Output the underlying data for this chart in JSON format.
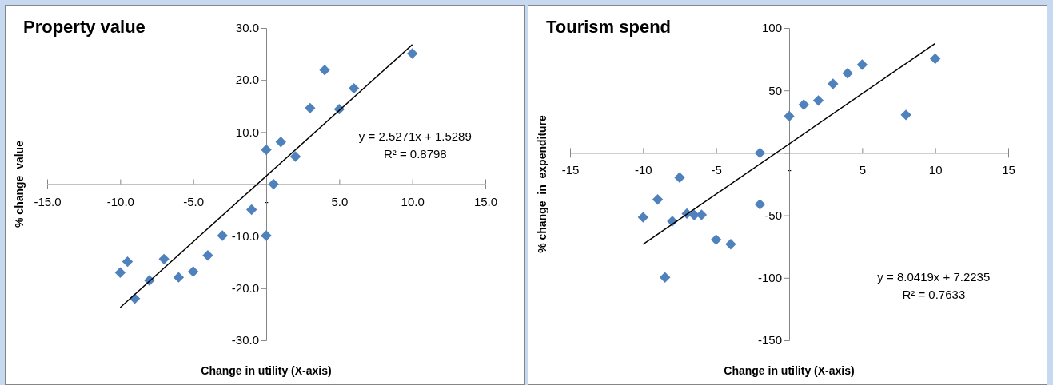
{
  "chart_data": [
    {
      "type": "scatter",
      "title": "Property value",
      "xlabel": "Change in utility (X-axis)",
      "ylabel": "% change  value",
      "grid": false,
      "xlim": [
        -15,
        15
      ],
      "xticks": [
        {
          "value": -15,
          "label": "-15.0"
        },
        {
          "value": -10,
          "label": "-10.0"
        },
        {
          "value": -5,
          "label": "-5.0"
        },
        {
          "value": 0,
          "label": "-"
        },
        {
          "value": 5,
          "label": "5.0"
        },
        {
          "value": 10,
          "label": "10.0"
        },
        {
          "value": 15,
          "label": "15.0"
        }
      ],
      "ylim": [
        -30,
        30
      ],
      "yticks": [
        {
          "value": -30,
          "label": "-30.0"
        },
        {
          "value": -20,
          "label": "-20.0"
        },
        {
          "value": -10,
          "label": "-10.0"
        },
        {
          "value": 0,
          "label": "-"
        },
        {
          "value": 10,
          "label": "10.0"
        },
        {
          "value": 20,
          "label": "20.0"
        },
        {
          "value": 30,
          "label": "30.0"
        }
      ],
      "annotations": [
        "y = 2.5271x + 1.5289",
        "R² = 0.8798"
      ],
      "series": [
        {
          "color": "#4f81bd",
          "marker": "diamond",
          "x": [
            -10,
            -9.5,
            -9,
            -8,
            -7,
            -6,
            -5,
            -4,
            -3,
            -1,
            0,
            0,
            0.5,
            1,
            2,
            3,
            4,
            5,
            6,
            10
          ],
          "values": [
            -17.0,
            -14.9,
            -22.0,
            -18.5,
            -14.4,
            -17.9,
            -16.8,
            -13.7,
            -9.9,
            -4.9,
            -9.9,
            6.6,
            0,
            8.1,
            5.3,
            14.6,
            21.9,
            14.4,
            18.4,
            25.1
          ]
        },
        {
          "type": "line",
          "color": "#000000",
          "marker": "none",
          "x": [
            -10,
            10
          ],
          "values": [
            -23.7,
            26.8
          ]
        }
      ]
    },
    {
      "type": "scatter",
      "title": "Tourism spend",
      "xlabel": "Change in utility (X-axis)",
      "ylabel": "% change  in  expenditure",
      "grid": false,
      "xlim": [
        -15,
        15
      ],
      "xticks": [
        -15,
        -10,
        -5,
        {
          "value": 0,
          "label": "-"
        },
        5,
        10,
        15
      ],
      "ylim": [
        -150,
        100
      ],
      "yticks": [
        -150,
        -100,
        -50,
        {
          "value": 0,
          "label": null
        },
        50,
        100
      ],
      "annotations": [
        "y = 8.0419x + 7.2235",
        "R² = 0.7633"
      ],
      "series": [
        {
          "color": "#4f81bd",
          "marker": "diamond",
          "x": [
            -10,
            -9,
            -8.5,
            -8,
            -7.5,
            -7,
            -6.5,
            -6,
            -5,
            -4,
            -2,
            -2,
            0,
            1,
            2,
            3,
            4,
            5,
            8,
            10
          ],
          "values": [
            -51.6,
            -37.3,
            -99.7,
            -54.7,
            -19.7,
            -48.6,
            -49.8,
            -49.6,
            -69.5,
            -73.1,
            0,
            -41.2,
            29.4,
            38.6,
            41.9,
            55.2,
            63.7,
            70.6,
            30.4,
            75.4
          ]
        },
        {
          "type": "line",
          "color": "#000000",
          "marker": "none",
          "x": [
            -10,
            10
          ],
          "values": [
            -73.2,
            87.6
          ]
        }
      ]
    }
  ]
}
